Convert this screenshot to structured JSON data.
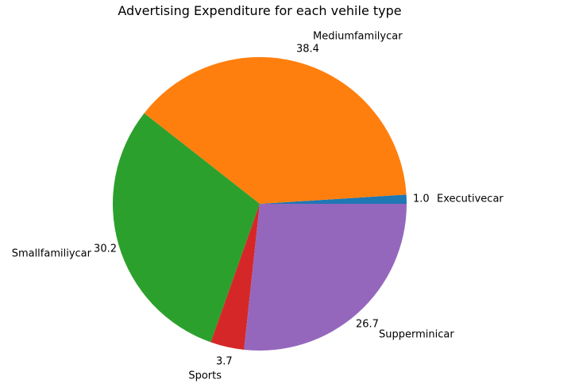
{
  "chart_data": {
    "type": "pie",
    "title": "Advertising Expenditure for each vehile type",
    "categories": [
      "Executivecar",
      "Mediumfamilycar",
      "Smallfamiliycar",
      "Sports",
      "Supperminicar"
    ],
    "values": [
      1.0,
      38.4,
      30.2,
      3.7,
      26.7
    ],
    "value_labels": [
      "1.0",
      "38.4",
      "30.2",
      "3.7",
      "26.7"
    ],
    "colors": [
      "#1f77b4",
      "#ff7f0e",
      "#2ca02c",
      "#d62728",
      "#9467bd"
    ],
    "start_angle_deg": 0,
    "direction": "counterclockwise",
    "legend": "none"
  }
}
